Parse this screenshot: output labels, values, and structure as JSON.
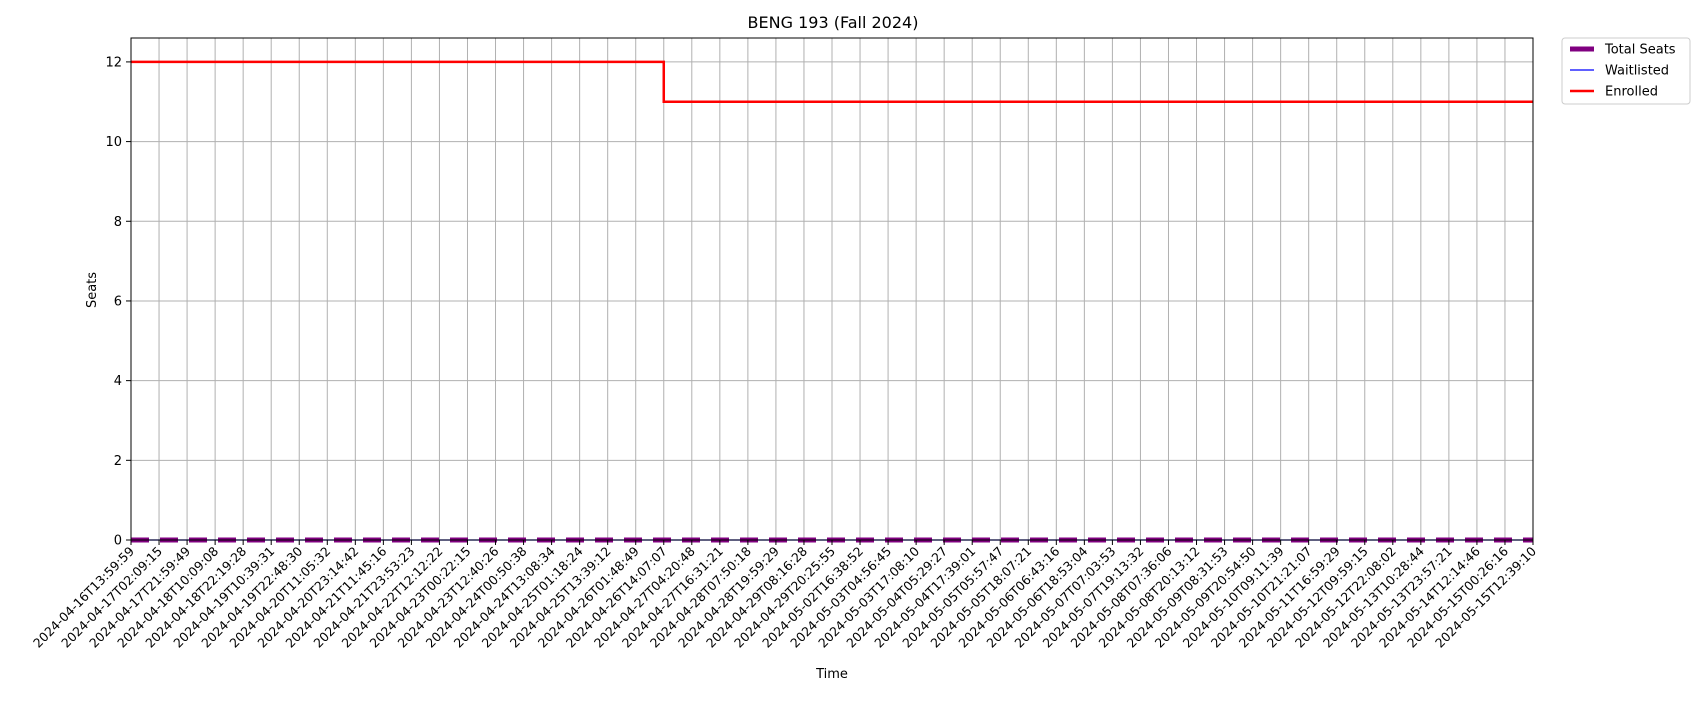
{
  "chart_data": {
    "type": "line",
    "title": "BENG 193 (Fall 2024)",
    "xlabel": "Time",
    "ylabel": "Seats",
    "ylim": [
      0,
      12.6
    ],
    "yticks": [
      0,
      2,
      4,
      6,
      8,
      10,
      12
    ],
    "grid": true,
    "legend_position": "outside-top-right",
    "x": [
      "2024-04-16T13:59:59",
      "2024-04-17T02:09:15",
      "2024-04-17T21:59:49",
      "2024-04-18T10:09:08",
      "2024-04-18T22:19:28",
      "2024-04-19T10:39:31",
      "2024-04-19T22:48:30",
      "2024-04-20T11:05:32",
      "2024-04-20T23:14:42",
      "2024-04-21T11:45:16",
      "2024-04-21T23:53:23",
      "2024-04-22T12:12:22",
      "2024-04-23T00:22:15",
      "2024-04-23T12:40:26",
      "2024-04-24T00:50:38",
      "2024-04-24T13:08:34",
      "2024-04-25T01:18:24",
      "2024-04-25T13:39:12",
      "2024-04-26T01:48:49",
      "2024-04-26T14:07:07",
      "2024-04-27T04:20:48",
      "2024-04-27T16:31:21",
      "2024-04-28T07:50:18",
      "2024-04-28T19:59:29",
      "2024-04-29T08:16:28",
      "2024-04-29T20:25:55",
      "2024-05-02T16:38:52",
      "2024-05-03T04:56:45",
      "2024-05-03T17:08:10",
      "2024-05-04T05:29:27",
      "2024-05-04T17:39:01",
      "2024-05-05T05:57:47",
      "2024-05-05T18:07:21",
      "2024-05-06T06:43:16",
      "2024-05-06T18:53:04",
      "2024-05-07T07:03:53",
      "2024-05-07T19:13:32",
      "2024-05-08T07:36:06",
      "2024-05-08T20:13:12",
      "2024-05-09T08:31:53",
      "2024-05-09T20:54:50",
      "2024-05-10T09:11:39",
      "2024-05-10T21:21:07",
      "2024-05-11T16:59:29",
      "2024-05-12T09:59:15",
      "2024-05-12T22:08:02",
      "2024-05-13T10:28:44",
      "2024-05-13T23:57:21",
      "2024-05-14T12:14:46",
      "2024-05-15T00:26:16",
      "2024-05-15T12:39:10"
    ],
    "series": [
      {
        "name": "Total Seats",
        "color": "#800080",
        "style": "dashed",
        "values": [
          0,
          0,
          0,
          0,
          0,
          0,
          0,
          0,
          0,
          0,
          0,
          0,
          0,
          0,
          0,
          0,
          0,
          0,
          0,
          0,
          0,
          0,
          0,
          0,
          0,
          0,
          0,
          0,
          0,
          0,
          0,
          0,
          0,
          0,
          0,
          0,
          0,
          0,
          0,
          0,
          0,
          0,
          0,
          0,
          0,
          0,
          0,
          0,
          0,
          0,
          0
        ]
      },
      {
        "name": "Waitlisted",
        "color": "#0000ff",
        "style": "solid",
        "values": [
          0,
          0,
          0,
          0,
          0,
          0,
          0,
          0,
          0,
          0,
          0,
          0,
          0,
          0,
          0,
          0,
          0,
          0,
          0,
          0,
          0,
          0,
          0,
          0,
          0,
          0,
          0,
          0,
          0,
          0,
          0,
          0,
          0,
          0,
          0,
          0,
          0,
          0,
          0,
          0,
          0,
          0,
          0,
          0,
          0,
          0,
          0,
          0,
          0,
          0,
          0
        ]
      },
      {
        "name": "Enrolled",
        "color": "#ff0000",
        "style": "solid",
        "values": [
          12,
          12,
          12,
          12,
          12,
          12,
          12,
          12,
          12,
          12,
          12,
          12,
          12,
          12,
          12,
          12,
          12,
          12,
          12,
          11,
          11,
          11,
          11,
          11,
          11,
          11,
          11,
          11,
          11,
          11,
          11,
          11,
          11,
          11,
          11,
          11,
          11,
          11,
          11,
          11,
          11,
          11,
          11,
          11,
          11,
          11,
          11,
          11,
          11,
          11,
          11
        ]
      }
    ]
  }
}
